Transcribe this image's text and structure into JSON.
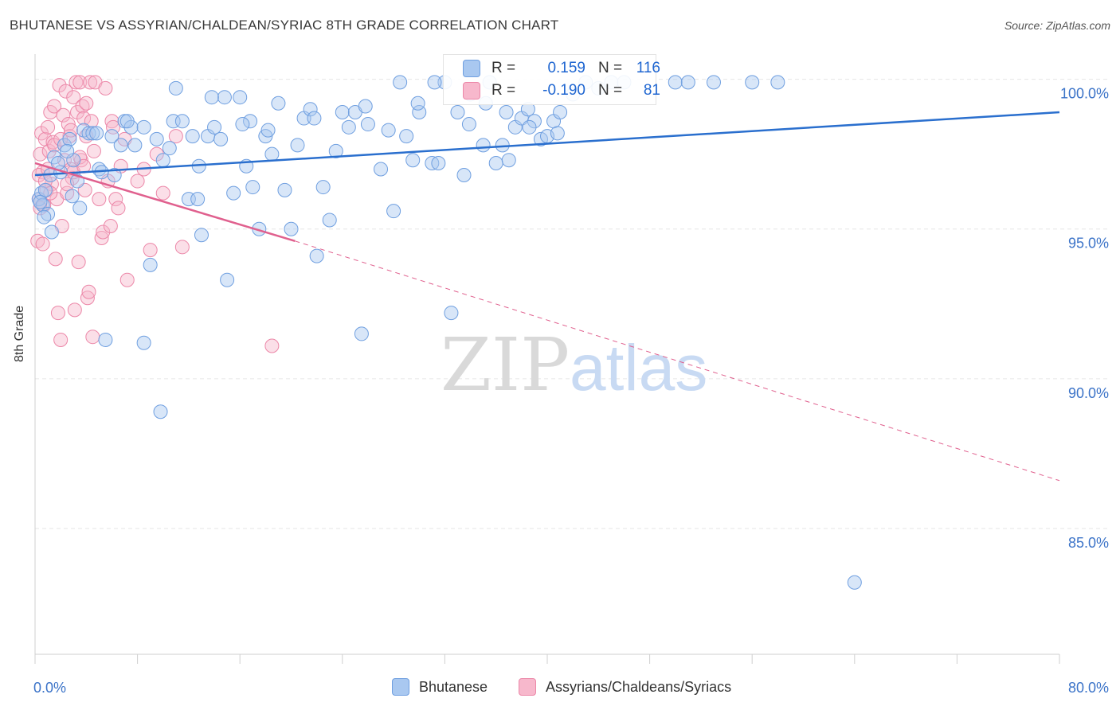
{
  "title": "BHUTANESE VS ASSYRIAN/CHALDEAN/SYRIAC 8TH GRADE CORRELATION CHART",
  "source": "Source: ZipAtlas.com",
  "watermark": {
    "zip": "ZIP",
    "atlas": "atlas"
  },
  "colors": {
    "blue_fill": "#a9c8f0",
    "blue_stroke": "#6f9fe0",
    "blue_line": "#2a6fce",
    "pink_fill": "#f7b8cc",
    "pink_stroke": "#ec87a8",
    "pink_line": "#e0608e",
    "axis_text": "#3b73c8",
    "grid": "#e6e6e6"
  },
  "legend_top": {
    "rows": [
      {
        "r_label": "R =",
        "r_value": "0.159",
        "n_label": "N =",
        "n_value": "116"
      },
      {
        "r_label": "R =",
        "r_value": "-0.190",
        "n_label": "N =",
        "n_value": "81"
      }
    ]
  },
  "legend_bottom": [
    "Bhutanese",
    "Assyrians/Chaldeans/Syriacs"
  ],
  "chart_data": {
    "type": "scatter",
    "title": "BHUTANESE VS ASSYRIAN/CHALDEAN/SYRIAC 8TH GRADE CORRELATION CHART",
    "xlabel": "",
    "ylabel": "8th Grade",
    "xlim": [
      0,
      80
    ],
    "ylim": [
      80.8,
      101.0
    ],
    "x_tick_labels": [
      "0.0%",
      "80.0%"
    ],
    "y_ticks": [
      100,
      95,
      90,
      85
    ],
    "y_tick_labels": [
      "100.0%",
      "95.0%",
      "90.0%",
      "85.0%"
    ],
    "grid": true,
    "legend": "bottom-center",
    "series": [
      {
        "name": "Bhutanese",
        "r": 0.159,
        "n": 116,
        "trend": {
          "x": [
            0,
            80
          ],
          "y": [
            96.8,
            98.9
          ]
        },
        "points": [
          [
            0.3,
            96.0
          ],
          [
            0.5,
            96.2
          ],
          [
            0.6,
            95.8
          ],
          [
            0.8,
            96.3
          ],
          [
            1.0,
            95.5
          ],
          [
            0.4,
            95.9
          ],
          [
            1.2,
            96.8
          ],
          [
            1.5,
            97.4
          ],
          [
            2.0,
            96.9
          ],
          [
            2.3,
            97.8
          ],
          [
            2.7,
            98.0
          ],
          [
            3.0,
            97.3
          ],
          [
            3.3,
            96.6
          ],
          [
            3.5,
            95.7
          ],
          [
            3.8,
            98.3
          ],
          [
            4.2,
            98.2
          ],
          [
            4.5,
            98.2
          ],
          [
            5.0,
            97.0
          ],
          [
            5.5,
            91.3
          ],
          [
            6.0,
            98.1
          ],
          [
            6.2,
            96.8
          ],
          [
            7.0,
            98.6
          ],
          [
            7.5,
            98.4
          ],
          [
            7.8,
            97.8
          ],
          [
            8.5,
            98.4
          ],
          [
            9.0,
            93.8
          ],
          [
            9.5,
            98.0
          ],
          [
            10.0,
            97.3
          ],
          [
            10.5,
            97.7
          ],
          [
            10.8,
            98.6
          ],
          [
            11.0,
            99.7
          ],
          [
            11.5,
            98.6
          ],
          [
            12.0,
            96.0
          ],
          [
            12.3,
            98.1
          ],
          [
            12.7,
            96.0
          ],
          [
            13.0,
            94.8
          ],
          [
            13.5,
            98.1
          ],
          [
            14.0,
            98.4
          ],
          [
            14.5,
            98.0
          ],
          [
            14.8,
            99.4
          ],
          [
            15.0,
            93.3
          ],
          [
            15.5,
            96.2
          ],
          [
            16.0,
            99.4
          ],
          [
            16.5,
            97.1
          ],
          [
            16.8,
            98.6
          ],
          [
            17.0,
            96.4
          ],
          [
            17.5,
            95.0
          ],
          [
            18.0,
            98.1
          ],
          [
            18.5,
            97.5
          ],
          [
            19.0,
            99.2
          ],
          [
            19.5,
            96.3
          ],
          [
            20.0,
            95.0
          ],
          [
            20.5,
            97.8
          ],
          [
            21.0,
            98.7
          ],
          [
            21.5,
            99.0
          ],
          [
            22.0,
            94.1
          ],
          [
            22.5,
            96.4
          ],
          [
            23.0,
            95.3
          ],
          [
            23.5,
            97.6
          ],
          [
            24.0,
            98.9
          ],
          [
            24.5,
            98.4
          ],
          [
            25.0,
            98.9
          ],
          [
            25.5,
            91.5
          ],
          [
            26.0,
            98.5
          ],
          [
            27.0,
            97.0
          ],
          [
            28.0,
            95.6
          ],
          [
            28.5,
            99.9
          ],
          [
            29.0,
            98.1
          ],
          [
            29.5,
            97.3
          ],
          [
            30.0,
            98.9
          ],
          [
            31.0,
            97.2
          ],
          [
            31.5,
            97.2
          ],
          [
            32.0,
            99.9
          ],
          [
            32.5,
            92.2
          ],
          [
            33.0,
            98.9
          ],
          [
            33.5,
            96.8
          ],
          [
            34.0,
            99.5
          ],
          [
            35.0,
            97.8
          ],
          [
            35.5,
            99.9
          ],
          [
            36.0,
            97.2
          ],
          [
            36.5,
            97.8
          ],
          [
            37.0,
            97.3
          ],
          [
            37.5,
            98.4
          ],
          [
            38.0,
            98.7
          ],
          [
            38.5,
            99.0
          ],
          [
            39.0,
            98.6
          ],
          [
            39.5,
            98.0
          ],
          [
            40.0,
            98.1
          ],
          [
            40.5,
            98.6
          ],
          [
            41.0,
            98.9
          ],
          [
            42.0,
            99.5
          ],
          [
            43.0,
            99.9
          ],
          [
            44.0,
            99.7
          ],
          [
            45.0,
            99.9
          ],
          [
            46.0,
            99.9
          ],
          [
            50.0,
            99.9
          ],
          [
            51.0,
            99.9
          ],
          [
            53.0,
            99.9
          ],
          [
            56.0,
            99.9
          ],
          [
            58.0,
            99.9
          ],
          [
            64.0,
            83.2
          ],
          [
            8.5,
            91.2
          ],
          [
            9.8,
            88.9
          ],
          [
            2.5,
            97.6
          ],
          [
            4.8,
            98.2
          ],
          [
            6.7,
            97.8
          ],
          [
            13.8,
            99.4
          ],
          [
            16.2,
            98.5
          ],
          [
            18.2,
            98.3
          ],
          [
            21.8,
            98.7
          ],
          [
            25.8,
            99.1
          ],
          [
            27.6,
            98.3
          ],
          [
            29.9,
            99.2
          ],
          [
            31.2,
            99.9
          ],
          [
            33.9,
            98.5
          ],
          [
            35.2,
            99.2
          ],
          [
            36.8,
            98.9
          ],
          [
            38.6,
            98.4
          ],
          [
            40.8,
            98.2
          ],
          [
            1.8,
            97.2
          ],
          [
            0.7,
            95.4
          ],
          [
            1.3,
            94.9
          ],
          [
            2.9,
            96.1
          ],
          [
            5.2,
            96.9
          ],
          [
            7.2,
            98.6
          ],
          [
            12.8,
            97.1
          ]
        ]
      },
      {
        "name": "Assyrians/Chaldeans/Syriacs",
        "r": -0.19,
        "n": 81,
        "trend": {
          "x": [
            0,
            20.3
          ],
          "y": [
            97.2,
            94.6
          ]
        },
        "trend_dashed": {
          "x": [
            20.3,
            80
          ],
          "y": [
            94.6,
            86.6
          ]
        },
        "points": [
          [
            0.2,
            94.6
          ],
          [
            0.3,
            96.0
          ],
          [
            0.4,
            97.5
          ],
          [
            0.5,
            98.2
          ],
          [
            0.6,
            96.9
          ],
          [
            0.7,
            95.8
          ],
          [
            0.8,
            98.0
          ],
          [
            0.9,
            96.3
          ],
          [
            1.0,
            98.4
          ],
          [
            1.1,
            97.6
          ],
          [
            1.2,
            98.9
          ],
          [
            1.3,
            96.5
          ],
          [
            1.4,
            97.9
          ],
          [
            1.5,
            99.1
          ],
          [
            1.6,
            94.0
          ],
          [
            1.7,
            96.0
          ],
          [
            1.8,
            92.2
          ],
          [
            1.9,
            99.8
          ],
          [
            2.0,
            91.3
          ],
          [
            2.1,
            95.1
          ],
          [
            2.2,
            98.8
          ],
          [
            2.3,
            97.3
          ],
          [
            2.4,
            99.6
          ],
          [
            2.5,
            96.2
          ],
          [
            2.6,
            98.5
          ],
          [
            2.7,
            98.1
          ],
          [
            2.8,
            97.0
          ],
          [
            2.9,
            96.7
          ],
          [
            3.0,
            99.4
          ],
          [
            3.1,
            92.3
          ],
          [
            3.2,
            99.9
          ],
          [
            3.3,
            98.9
          ],
          [
            3.4,
            93.9
          ],
          [
            3.5,
            99.9
          ],
          [
            3.6,
            97.3
          ],
          [
            3.7,
            99.1
          ],
          [
            3.8,
            98.7
          ],
          [
            3.9,
            96.3
          ],
          [
            4.0,
            99.2
          ],
          [
            4.1,
            92.7
          ],
          [
            4.2,
            92.9
          ],
          [
            4.3,
            99.9
          ],
          [
            4.4,
            98.6
          ],
          [
            4.5,
            91.4
          ],
          [
            4.6,
            97.6
          ],
          [
            4.7,
            99.9
          ],
          [
            5.0,
            96.0
          ],
          [
            5.2,
            94.7
          ],
          [
            5.3,
            94.9
          ],
          [
            5.5,
            99.7
          ],
          [
            5.7,
            96.6
          ],
          [
            5.9,
            95.1
          ],
          [
            6.0,
            98.6
          ],
          [
            6.1,
            98.4
          ],
          [
            6.3,
            96.0
          ],
          [
            6.5,
            95.7
          ],
          [
            6.7,
            97.1
          ],
          [
            7.0,
            98.0
          ],
          [
            7.2,
            93.3
          ],
          [
            8.0,
            96.6
          ],
          [
            8.5,
            97.0
          ],
          [
            9.0,
            94.3
          ],
          [
            9.5,
            97.5
          ],
          [
            10.0,
            96.2
          ],
          [
            11.0,
            98.1
          ],
          [
            11.5,
            94.4
          ],
          [
            18.5,
            91.1
          ],
          [
            0.3,
            96.8
          ],
          [
            0.6,
            94.5
          ],
          [
            1.0,
            97.0
          ],
          [
            1.5,
            97.8
          ],
          [
            2.0,
            98.0
          ],
          [
            2.5,
            96.5
          ],
          [
            3.0,
            96.9
          ],
          [
            3.5,
            97.4
          ],
          [
            4.0,
            98.1
          ],
          [
            0.4,
            95.7
          ],
          [
            0.8,
            96.6
          ],
          [
            1.2,
            96.2
          ],
          [
            2.8,
            98.3
          ],
          [
            3.8,
            97.1
          ]
        ]
      }
    ]
  }
}
